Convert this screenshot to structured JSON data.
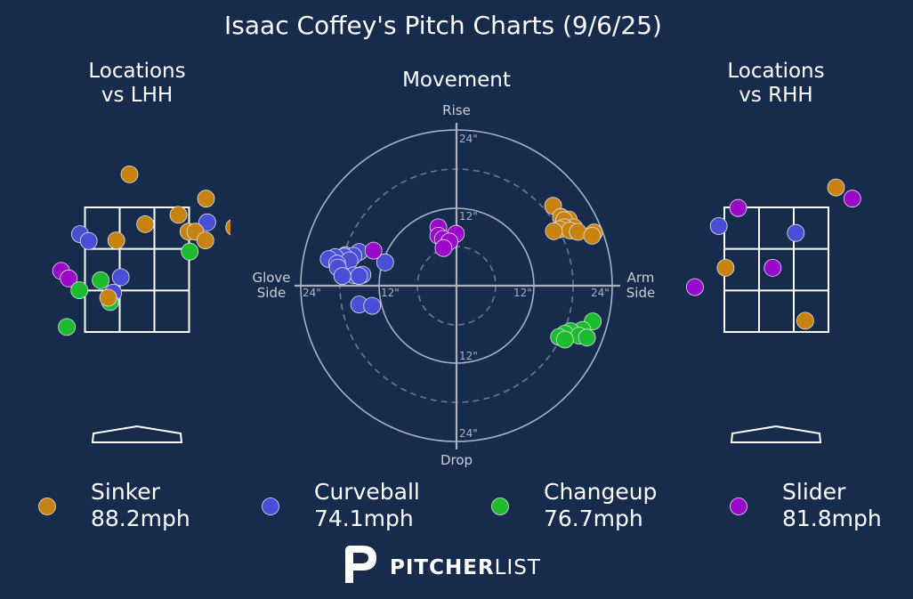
{
  "title": "Isaac Coffey's Pitch Charts (9/6/25)",
  "brand": {
    "bold": "PITCHER",
    "light": "LIST"
  },
  "colors": {
    "background": "#172b4d",
    "Sinker": "#c8820f",
    "Curveball": "#4a4ed6",
    "Changeup": "#1bbd2e",
    "Slider": "#9a08c9"
  },
  "chart_data": [
    {
      "type": "scatter",
      "title": [
        "Locations",
        "vs LHH"
      ],
      "panel": "left",
      "points": [
        {
          "pitch": "Curveball",
          "x": 1.81,
          "y": 4.23
        },
        {
          "pitch": "Sinker",
          "x": -0.12,
          "y": 4.03
        },
        {
          "pitch": "Sinker",
          "x": 1.1,
          "y": 3.64
        },
        {
          "pitch": "Sinker",
          "x": 0.66,
          "y": 3.38
        },
        {
          "pitch": "Sinker",
          "x": 1.98,
          "y": 3.36
        },
        {
          "pitch": "Curveball",
          "x": 1.12,
          "y": 3.26
        },
        {
          "pitch": "Sinker",
          "x": 0.13,
          "y": 3.23
        },
        {
          "pitch": "Sinker",
          "x": 1.55,
          "y": 3.18
        },
        {
          "pitch": "Sinker",
          "x": 0.82,
          "y": 3.11
        },
        {
          "pitch": "Sinker",
          "x": 0.93,
          "y": 3.11
        },
        {
          "pitch": "Sinker",
          "x": -2.55,
          "y": 3.1
        },
        {
          "pitch": "Curveball",
          "x": -0.91,
          "y": 3.07
        },
        {
          "pitch": "Sinker",
          "x": -0.33,
          "y": 2.97
        },
        {
          "pitch": "Curveball",
          "x": -0.77,
          "y": 2.96
        },
        {
          "pitch": "Sinker",
          "x": 1.09,
          "y": 2.97
        },
        {
          "pitch": "Changeup",
          "x": 0.84,
          "y": 2.79
        },
        {
          "pitch": "Changeup",
          "x": 2.02,
          "y": 2.61
        },
        {
          "pitch": "Slider",
          "x": -1.21,
          "y": 2.48
        },
        {
          "pitch": "Slider",
          "x": -1.09,
          "y": 2.36
        },
        {
          "pitch": "Curveball",
          "x": -0.26,
          "y": 2.38
        },
        {
          "pitch": "Changeup",
          "x": -0.58,
          "y": 2.33
        },
        {
          "pitch": "Changeup",
          "x": -2.0,
          "y": 2.22
        },
        {
          "pitch": "Changeup",
          "x": -0.92,
          "y": 2.17
        },
        {
          "pitch": "Curveball",
          "x": -0.38,
          "y": 2.13
        },
        {
          "pitch": "Changeup",
          "x": -0.43,
          "y": 1.98
        },
        {
          "pitch": "Sinker",
          "x": -0.46,
          "y": 2.05
        },
        {
          "pitch": "Changeup",
          "x": -1.12,
          "y": 1.58
        },
        {
          "pitch": "Changeup",
          "x": -2.52,
          "y": 1.38
        }
      ]
    },
    {
      "type": "scatter",
      "title": "Movement",
      "axis_labels": {
        "top": "Rise",
        "bottom": "Drop",
        "left": [
          "Glove",
          "Side"
        ],
        "right": [
          "Arm",
          "Side"
        ]
      },
      "ring_labels": [
        "24\"",
        "12\"",
        "12\"",
        "24\"",
        "24\"",
        "12\"",
        "12\"",
        "24\""
      ],
      "xlim": [
        -24,
        24
      ],
      "ylim": [
        -24,
        24
      ],
      "points": [
        {
          "pitch": "Sinker",
          "x": 14.9,
          "y": 12.3
        },
        {
          "pitch": "Sinker",
          "x": 16.1,
          "y": 10.6
        },
        {
          "pitch": "Sinker",
          "x": 17.3,
          "y": 10.2
        },
        {
          "pitch": "Sinker",
          "x": 16.6,
          "y": 10.1
        },
        {
          "pitch": "Sinker",
          "x": 18.1,
          "y": 9.0
        },
        {
          "pitch": "Sinker",
          "x": 16.6,
          "y": 9.0
        },
        {
          "pitch": "Sinker",
          "x": 15.9,
          "y": 8.7
        },
        {
          "pitch": "Sinker",
          "x": 17.5,
          "y": 8.5
        },
        {
          "pitch": "Sinker",
          "x": 15.0,
          "y": 8.4
        },
        {
          "pitch": "Sinker",
          "x": 18.7,
          "y": 8.3
        },
        {
          "pitch": "Sinker",
          "x": 21.2,
          "y": 8.2
        },
        {
          "pitch": "Sinker",
          "x": 20.9,
          "y": 7.7
        },
        {
          "pitch": "Curveball",
          "x": -15.0,
          "y": 5.2
        },
        {
          "pitch": "Curveball",
          "x": -17.1,
          "y": 4.7
        },
        {
          "pitch": "Curveball",
          "x": -15.9,
          "y": 4.6
        },
        {
          "pitch": "Curveball",
          "x": -17.3,
          "y": 4.5
        },
        {
          "pitch": "Curveball",
          "x": -18.7,
          "y": 4.4
        },
        {
          "pitch": "Curveball",
          "x": -19.7,
          "y": 4.1
        },
        {
          "pitch": "Curveball",
          "x": -16.5,
          "y": 3.9
        },
        {
          "pitch": "Curveball",
          "x": -18.4,
          "y": 3.4
        },
        {
          "pitch": "Curveball",
          "x": -11.0,
          "y": 3.6
        },
        {
          "pitch": "Curveball",
          "x": -18.3,
          "y": 2.8
        },
        {
          "pitch": "Curveball",
          "x": -14.5,
          "y": 1.7
        },
        {
          "pitch": "Curveball",
          "x": -15.8,
          "y": 1.6
        },
        {
          "pitch": "Curveball",
          "x": -15.0,
          "y": 1.5
        },
        {
          "pitch": "Curveball",
          "x": -17.6,
          "y": 1.5
        },
        {
          "pitch": "Curveball",
          "x": -15.0,
          "y": -2.9
        },
        {
          "pitch": "Curveball",
          "x": -13.0,
          "y": -3.1
        },
        {
          "pitch": "Slider",
          "x": -12.8,
          "y": 5.4
        },
        {
          "pitch": "Slider",
          "x": -2.8,
          "y": 9.0
        },
        {
          "pitch": "Slider",
          "x": -0.1,
          "y": 8.0
        },
        {
          "pitch": "Slider",
          "x": -2.8,
          "y": 7.7
        },
        {
          "pitch": "Slider",
          "x": -2.1,
          "y": 7.2
        },
        {
          "pitch": "Slider",
          "x": -1.1,
          "y": 6.8
        },
        {
          "pitch": "Slider",
          "x": -2.0,
          "y": 5.8
        },
        {
          "pitch": "Changeup",
          "x": 21.0,
          "y": -5.5
        },
        {
          "pitch": "Changeup",
          "x": 19.4,
          "y": -6.8
        },
        {
          "pitch": "Changeup",
          "x": 17.6,
          "y": -7.0
        },
        {
          "pitch": "Changeup",
          "x": 16.7,
          "y": -7.4
        },
        {
          "pitch": "Changeup",
          "x": 18.9,
          "y": -7.7
        },
        {
          "pitch": "Changeup",
          "x": 15.8,
          "y": -7.9
        },
        {
          "pitch": "Changeup",
          "x": 20.1,
          "y": -8.0
        },
        {
          "pitch": "Changeup",
          "x": 16.7,
          "y": -8.3
        }
      ]
    },
    {
      "type": "scatter",
      "title": [
        "Locations",
        "vs RHH"
      ],
      "panel": "right",
      "points": [
        {
          "pitch": "Sinker",
          "x": 0.95,
          "y": 3.82
        },
        {
          "pitch": "Slider",
          "x": 1.21,
          "y": 3.64
        },
        {
          "pitch": "Slider",
          "x": -0.61,
          "y": 3.49
        },
        {
          "pitch": "Curveball",
          "x": -0.92,
          "y": 3.2
        },
        {
          "pitch": "Curveball",
          "x": 0.31,
          "y": 3.09
        },
        {
          "pitch": "Sinker",
          "x": -2.31,
          "y": 2.53
        },
        {
          "pitch": "Sinker",
          "x": -0.81,
          "y": 2.53
        },
        {
          "pitch": "Slider",
          "x": -0.06,
          "y": 2.53
        },
        {
          "pitch": "Curveball",
          "x": 2.16,
          "y": 2.49
        },
        {
          "pitch": "Sinker",
          "x": -2.39,
          "y": 2.34
        },
        {
          "pitch": "Curveball",
          "x": 2.76,
          "y": 2.33
        },
        {
          "pitch": "Slider",
          "x": -1.3,
          "y": 2.22
        },
        {
          "pitch": "Sinker",
          "x": 0.46,
          "y": 1.68
        }
      ]
    }
  ],
  "legend": [
    {
      "pitch": "Sinker",
      "speed": "88.2mph"
    },
    {
      "pitch": "Curveball",
      "speed": "74.1mph"
    },
    {
      "pitch": "Changeup",
      "speed": "76.7mph"
    },
    {
      "pitch": "Slider",
      "speed": "81.8mph"
    }
  ]
}
